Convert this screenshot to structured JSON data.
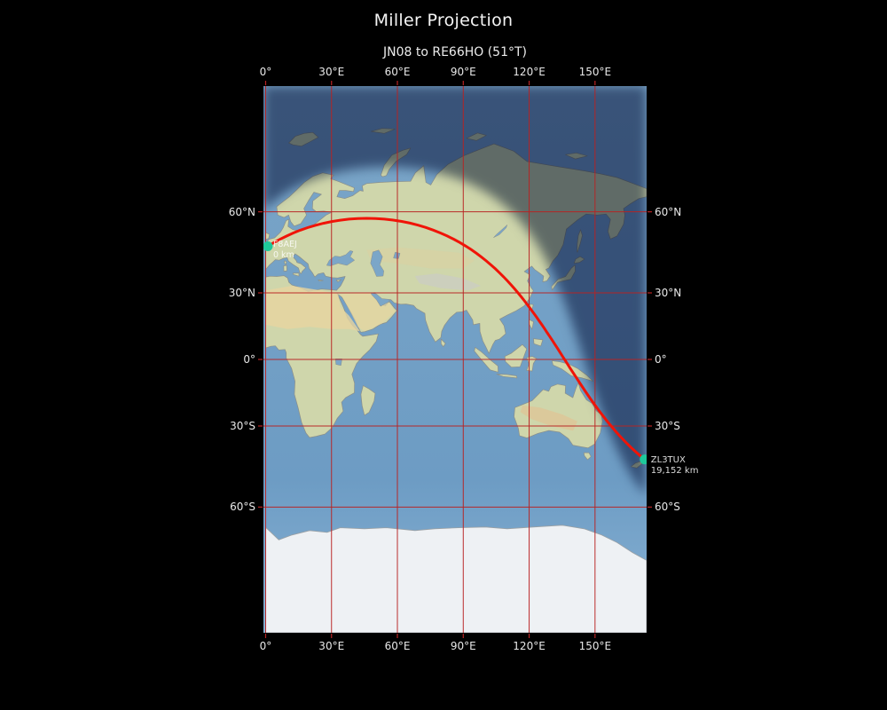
{
  "title": "Miller Projection",
  "subtitle": "JN08 to RE66HO (51°T)",
  "colors": {
    "background": "#000000",
    "title_text": "#f5f5f5",
    "tick_text": "#e8e8e8",
    "grid": "#b92222",
    "tick_mark": "#b92222",
    "path": "#f01408",
    "marker": "#1ec99b",
    "ocean": "#7ba6c8",
    "ocean_south": "#6d9cc4",
    "land": "#cfd6ab",
    "ice": "#eef1f4",
    "coastline": "#8b8f8a",
    "night": "#76809a",
    "label_text": "#dcdcdc"
  },
  "axes": {
    "top": [
      {
        "label": "0°",
        "lon": 0
      },
      {
        "label": "30°E",
        "lon": 30
      },
      {
        "label": "60°E",
        "lon": 60
      },
      {
        "label": "90°E",
        "lon": 90
      },
      {
        "label": "120°E",
        "lon": 120
      },
      {
        "label": "150°E",
        "lon": 150
      }
    ],
    "bottom": [
      {
        "label": "0°",
        "lon": 0
      },
      {
        "label": "30°E",
        "lon": 30
      },
      {
        "label": "60°E",
        "lon": 60
      },
      {
        "label": "90°E",
        "lon": 90
      },
      {
        "label": "120°E",
        "lon": 120
      },
      {
        "label": "150°E",
        "lon": 150
      }
    ],
    "left": [
      {
        "label": "60°N",
        "lat": 60
      },
      {
        "label": "30°N",
        "lat": 30
      },
      {
        "label": "0°",
        "lat": 0
      },
      {
        "label": "30°S",
        "lat": -30
      },
      {
        "label": "60°S",
        "lat": -60
      }
    ],
    "right": [
      {
        "label": "60°N",
        "lat": 60
      },
      {
        "label": "30°N",
        "lat": 30
      },
      {
        "label": "0°",
        "lat": 0
      },
      {
        "label": "30°S",
        "lat": -30
      },
      {
        "label": "60°S",
        "lat": -60
      }
    ]
  },
  "map": {
    "projection": "Miller",
    "lon_range": [
      -1.0,
      173.5
    ],
    "lat_range": [
      -88.4,
      88.4
    ],
    "grid_lons": [
      0,
      30,
      60,
      90,
      120,
      150
    ],
    "grid_lats": [
      -60,
      -30,
      0,
      30,
      60
    ],
    "terminator": {
      "subsolar_lon": 55,
      "declination": -17.5
    }
  },
  "route": {
    "start": {
      "callsign": "F8AEJ",
      "grid": "JN08",
      "lon": 1.0,
      "lat": 48.4,
      "distance": "0 km"
    },
    "end": {
      "callsign": "ZL3TUX",
      "grid": "RE66HO",
      "lon": 172.6,
      "lat": -43.5,
      "distance": "19,152 km"
    },
    "bearing_label": "51°T"
  }
}
